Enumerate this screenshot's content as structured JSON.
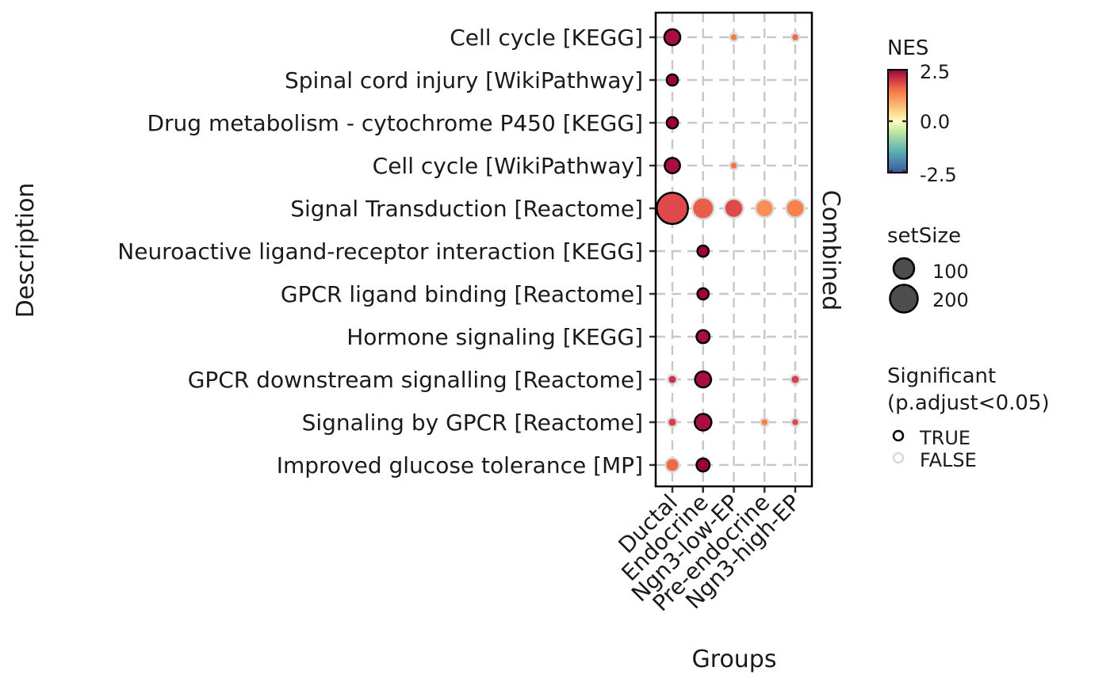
{
  "chart_data": {
    "type": "dot",
    "xlabel": "Groups",
    "ylabel": "Description",
    "facet_label": "Combined",
    "groups": [
      "Ductal",
      "Endocrine",
      "Ngn3-low-EP",
      "Pre-endocrine",
      "Ngn3-high-EP"
    ],
    "descriptions": [
      "Cell cycle [KEGG]",
      "Spinal cord injury [WikiPathway]",
      "Drug metabolism - cytochrome P450 [KEGG]",
      "Cell cycle [WikiPathway]",
      "Signal Transduction [Reactome]",
      "Neuroactive ligand-receptor interaction [KEGG]",
      "GPCR ligand binding [Reactome]",
      "Hormone signaling [KEGG]",
      "GPCR downstream signalling [Reactome]",
      "Signaling by GPCR [Reactome]",
      "Improved glucose tolerance [MP]"
    ],
    "points": [
      {
        "description": "Cell cycle [KEGG]",
        "group": "Ductal",
        "NES": 2.4,
        "setSize": 60,
        "significant": true
      },
      {
        "description": "Cell cycle [KEGG]",
        "group": "Ngn3-low-EP",
        "NES": 1.4,
        "setSize": 15,
        "significant": false
      },
      {
        "description": "Cell cycle [KEGG]",
        "group": "Ngn3-high-EP",
        "NES": 1.6,
        "setSize": 15,
        "significant": false
      },
      {
        "description": "Spinal cord injury [WikiPathway]",
        "group": "Ductal",
        "NES": 2.5,
        "setSize": 30,
        "significant": true
      },
      {
        "description": "Drug metabolism - cytochrome P450 [KEGG]",
        "group": "Ductal",
        "NES": 2.5,
        "setSize": 30,
        "significant": true
      },
      {
        "description": "Cell cycle [WikiPathway]",
        "group": "Ductal",
        "NES": 2.4,
        "setSize": 55,
        "significant": true
      },
      {
        "description": "Cell cycle [WikiPathway]",
        "group": "Ngn3-low-EP",
        "NES": 1.5,
        "setSize": 15,
        "significant": false
      },
      {
        "description": "Signal Transduction [Reactome]",
        "group": "Ductal",
        "NES": 1.9,
        "setSize": 230,
        "significant": true
      },
      {
        "description": "Signal Transduction [Reactome]",
        "group": "Endocrine",
        "NES": 1.7,
        "setSize": 110,
        "significant": false
      },
      {
        "description": "Signal Transduction [Reactome]",
        "group": "Ngn3-low-EP",
        "NES": 1.9,
        "setSize": 85,
        "significant": false
      },
      {
        "description": "Signal Transduction [Reactome]",
        "group": "Pre-endocrine",
        "NES": 1.1,
        "setSize": 75,
        "significant": false
      },
      {
        "description": "Signal Transduction [Reactome]",
        "group": "Ngn3-high-EP",
        "NES": 1.3,
        "setSize": 80,
        "significant": false
      },
      {
        "description": "Neuroactive ligand-receptor interaction [KEGG]",
        "group": "Endocrine",
        "NES": 2.6,
        "setSize": 30,
        "significant": true
      },
      {
        "description": "GPCR ligand binding [Reactome]",
        "group": "Endocrine",
        "NES": 2.5,
        "setSize": 30,
        "significant": true
      },
      {
        "description": "Hormone signaling [KEGG]",
        "group": "Endocrine",
        "NES": 2.4,
        "setSize": 40,
        "significant": true
      },
      {
        "description": "GPCR downstream signalling [Reactome]",
        "group": "Ductal",
        "NES": 2.1,
        "setSize": 20,
        "significant": false
      },
      {
        "description": "GPCR downstream signalling [Reactome]",
        "group": "Endocrine",
        "NES": 2.4,
        "setSize": 60,
        "significant": true
      },
      {
        "description": "GPCR downstream signalling [Reactome]",
        "group": "Ngn3-high-EP",
        "NES": 2.0,
        "setSize": 20,
        "significant": false
      },
      {
        "description": "Signaling by GPCR [Reactome]",
        "group": "Ductal",
        "NES": 2.0,
        "setSize": 20,
        "significant": false
      },
      {
        "description": "Signaling by GPCR [Reactome]",
        "group": "Endocrine",
        "NES": 2.4,
        "setSize": 65,
        "significant": true
      },
      {
        "description": "Signaling by GPCR [Reactome]",
        "group": "Pre-endocrine",
        "NES": 1.3,
        "setSize": 15,
        "significant": false
      },
      {
        "description": "Signaling by GPCR [Reactome]",
        "group": "Ngn3-high-EP",
        "NES": 1.9,
        "setSize": 15,
        "significant": false
      },
      {
        "description": "Improved glucose tolerance [MP]",
        "group": "Ductal",
        "NES": 1.6,
        "setSize": 45,
        "significant": false
      },
      {
        "description": "Improved glucose tolerance [MP]",
        "group": "Endocrine",
        "NES": 2.5,
        "setSize": 40,
        "significant": true
      }
    ],
    "legend": {
      "color": {
        "title": "NES",
        "range": [
          -2.5,
          2.5
        ],
        "ticks": [
          "2.5",
          "0.0",
          "-2.5"
        ],
        "palette": "Spectral (reversed)"
      },
      "size": {
        "title": "setSize",
        "entries": [
          {
            "label": "100",
            "value": 100
          },
          {
            "label": "200",
            "value": 200
          }
        ]
      },
      "significance": {
        "title_line1": "Significant",
        "title_line2": "(p.adjust<0.05)",
        "entries": [
          {
            "label": "TRUE",
            "value": true
          },
          {
            "label": "FALSE",
            "value": false
          }
        ]
      }
    },
    "grid": true,
    "legend_position": "right"
  },
  "colors": {
    "significant_outline": "#000000",
    "nonsignificant_outline": "#d9d9d9",
    "grid": "#c8c8c8",
    "panel_border": "#000000",
    "legend_point_fill": "#4d4d4d"
  }
}
